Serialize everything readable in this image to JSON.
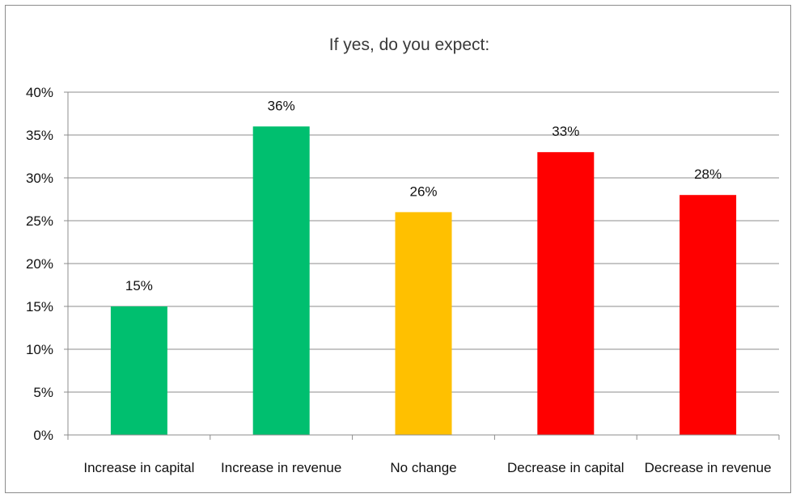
{
  "chart_data": {
    "type": "bar",
    "title": "If yes, do you expect:",
    "xlabel": "",
    "ylabel": "",
    "categories": [
      "Increase in capital",
      "Increase in revenue",
      "No change",
      "Decrease in capital",
      "Decrease in revenue"
    ],
    "values": [
      15,
      36,
      26,
      33,
      28
    ],
    "data_labels": [
      "15%",
      "36%",
      "26%",
      "33%",
      "28%"
    ],
    "bar_colors": [
      "#00bf6f",
      "#00bf6f",
      "#ffc000",
      "#ff0000",
      "#ff0000"
    ],
    "ylim": [
      0,
      40
    ],
    "y_ticks": [
      0,
      5,
      10,
      15,
      20,
      25,
      30,
      35,
      40
    ],
    "y_tick_labels": [
      "0%",
      "5%",
      "10%",
      "15%",
      "20%",
      "25%",
      "30%",
      "35%",
      "40%"
    ],
    "grid": true,
    "legend": "none"
  }
}
